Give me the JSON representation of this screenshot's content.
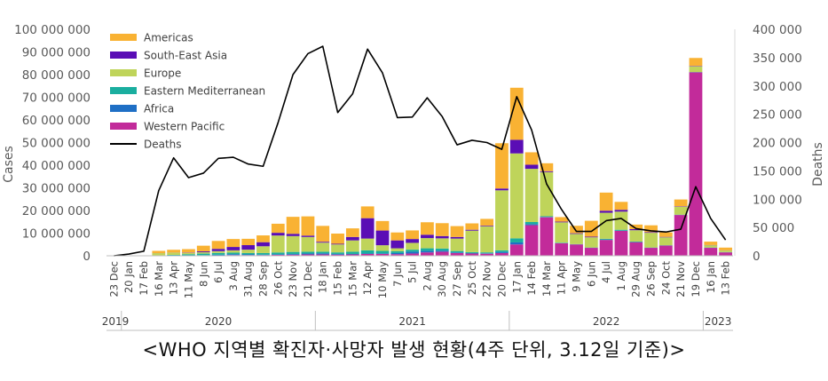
{
  "caption": "<WHO 지역별 확진자·사망자 발생 현황(4주 단위, 3.12일 기준)>",
  "colors": {
    "Americas": "#F9B233",
    "South-East Asia": "#5A0DB5",
    "Europe": "#BFD45A",
    "Eastern Mediterranean": "#1AAE9F",
    "Africa": "#1F6FC5",
    "Western Pacific": "#C22B9A",
    "Deaths": "#000000"
  },
  "chart_data": {
    "type": "bar",
    "stacked": true,
    "title": "",
    "xlabel": "",
    "ylabel": "Cases",
    "y2label": "Deaths",
    "ylim": [
      0,
      100000000
    ],
    "y2lim": [
      0,
      400000
    ],
    "yticks": [
      "0",
      "10 000 000",
      "20 000 000",
      "30 000 000",
      "40 000 000",
      "50 000 000",
      "60 000 000",
      "70 000 000",
      "80 000 000",
      "90 000 000",
      "100 000 000"
    ],
    "y2ticks": [
      "0",
      "50 000",
      "100 000",
      "150 000",
      "200 000",
      "250 000",
      "300 000",
      "350 000",
      "400 000"
    ],
    "categories": [
      "23 Dec",
      "20 Jan",
      "17 Feb",
      "16 Mar",
      "13 Apr",
      "11 May",
      "8 Jun",
      "6 Jul",
      "3 Aug",
      "31 Aug",
      "28 Sep",
      "26 Oct",
      "23 Nov",
      "21 Dec",
      "18 Jan",
      "15 Feb",
      "15 Mar",
      "12 Apr",
      "10 May",
      "7 Jun",
      "5 Jul",
      "2 Aug",
      "30 Aug",
      "27 Sep",
      "25 Oct",
      "22 Nov",
      "20 Dec",
      "17 Jan",
      "14 Feb",
      "14 Mar",
      "11 Apr",
      "9 May",
      "6 Jun",
      "4 Jul",
      "1 Aug",
      "29 Aug",
      "26 Sep",
      "24 Oct",
      "21 Nov",
      "19 Dec",
      "16 Jan",
      "13 Feb"
    ],
    "years": [
      {
        "label": "2019",
        "start": 0,
        "end": 0
      },
      {
        "label": "2020",
        "start": 1,
        "end": 13
      },
      {
        "label": "2021",
        "start": 14,
        "end": 26
      },
      {
        "label": "2022",
        "start": 27,
        "end": 39
      },
      {
        "label": "2023",
        "start": 40,
        "end": 41
      }
    ],
    "series": [
      {
        "name": "Western Pacific",
        "values": [
          0,
          100000,
          50000,
          50000,
          50000,
          80000,
          100000,
          200000,
          300000,
          300000,
          300000,
          400000,
          500000,
          600000,
          600000,
          500000,
          600000,
          800000,
          800000,
          700000,
          1000000,
          1500000,
          1800000,
          1200000,
          1000000,
          900000,
          1200000,
          5000000,
          13500000,
          17000000,
          5500000,
          5000000,
          3500000,
          7000000,
          11000000,
          6000000,
          3500000,
          4500000,
          18000000,
          81000000,
          3500000,
          1500000
        ]
      },
      {
        "name": "Africa",
        "values": [
          0,
          0,
          0,
          20000,
          50000,
          100000,
          150000,
          250000,
          400000,
          300000,
          200000,
          250000,
          300000,
          400000,
          500000,
          300000,
          200000,
          200000,
          250000,
          500000,
          800000,
          700000,
          500000,
          300000,
          200000,
          200000,
          500000,
          900000,
          500000,
          150000,
          80000,
          50000,
          50000,
          100000,
          100000,
          80000,
          50000,
          50000,
          50000,
          50000,
          50000,
          30000
        ]
      },
      {
        "name": "Eastern Mediterranean",
        "values": [
          0,
          0,
          20000,
          80000,
          300000,
          500000,
          700000,
          800000,
          700000,
          600000,
          700000,
          800000,
          900000,
          800000,
          700000,
          700000,
          1000000,
          1400000,
          1100000,
          800000,
          900000,
          1100000,
          900000,
          600000,
          400000,
          400000,
          700000,
          1800000,
          900000,
          300000,
          200000,
          100000,
          100000,
          400000,
          400000,
          200000,
          100000,
          100000,
          100000,
          100000,
          100000,
          100000
        ]
      },
      {
        "name": "Europe",
        "values": [
          0,
          0,
          0,
          1000000,
          1000000,
          600000,
          600000,
          800000,
          1000000,
          1500000,
          3000000,
          7500000,
          7000000,
          6500000,
          4000000,
          3500000,
          5000000,
          5200000,
          2500000,
          1300000,
          3000000,
          4500000,
          4500000,
          5500000,
          9500000,
          11500000,
          26500000,
          37500000,
          23500000,
          19500000,
          9000000,
          4500000,
          4500000,
          11500000,
          8000000,
          5000000,
          6500000,
          3500000,
          3500000,
          2500000,
          1000000,
          700000
        ]
      },
      {
        "name": "South-East Asia",
        "values": [
          0,
          0,
          0,
          20000,
          50000,
          150000,
          400000,
          1000000,
          1500000,
          2000000,
          1800000,
          1200000,
          1000000,
          600000,
          400000,
          300000,
          1500000,
          9000000,
          6500000,
          3500000,
          1700000,
          1500000,
          1000000,
          700000,
          400000,
          300000,
          800000,
          6000000,
          1800000,
          400000,
          300000,
          300000,
          300000,
          900000,
          800000,
          500000,
          300000,
          200000,
          200000,
          200000,
          100000,
          80000
        ]
      },
      {
        "name": "Americas",
        "values": [
          0,
          0,
          0,
          1000000,
          1200000,
          1500000,
          2500000,
          3500000,
          3500000,
          2800000,
          3000000,
          4000000,
          7500000,
          8500000,
          7000000,
          4500000,
          3800000,
          5200000,
          4200000,
          3500000,
          3800000,
          5500000,
          5700000,
          4800000,
          2800000,
          3000000,
          20000000,
          23000000,
          5500000,
          3500000,
          2000000,
          3300000,
          7000000,
          8000000,
          3500000,
          2000000,
          3000000,
          2000000,
          3000000,
          3500000,
          1500000,
          1200000
        ]
      }
    ],
    "line": {
      "name": "Deaths",
      "axis": "right",
      "values": [
        0,
        3000,
        8000,
        115000,
        173000,
        138000,
        146000,
        172000,
        174000,
        162000,
        158000,
        235000,
        320000,
        357000,
        370000,
        253000,
        286000,
        365000,
        323000,
        244000,
        245000,
        279000,
        246000,
        196000,
        204000,
        200000,
        188000,
        281000,
        222000,
        127000,
        82000,
        43000,
        43000,
        62000,
        66000,
        48000,
        44000,
        42000,
        47000,
        122000,
        66000,
        28000
      ]
    },
    "legend": {
      "position": "top-left",
      "entries": [
        "Americas",
        "South-East Asia",
        "Europe",
        "Eastern Mediterranean",
        "Africa",
        "Western Pacific",
        "Deaths"
      ]
    }
  }
}
